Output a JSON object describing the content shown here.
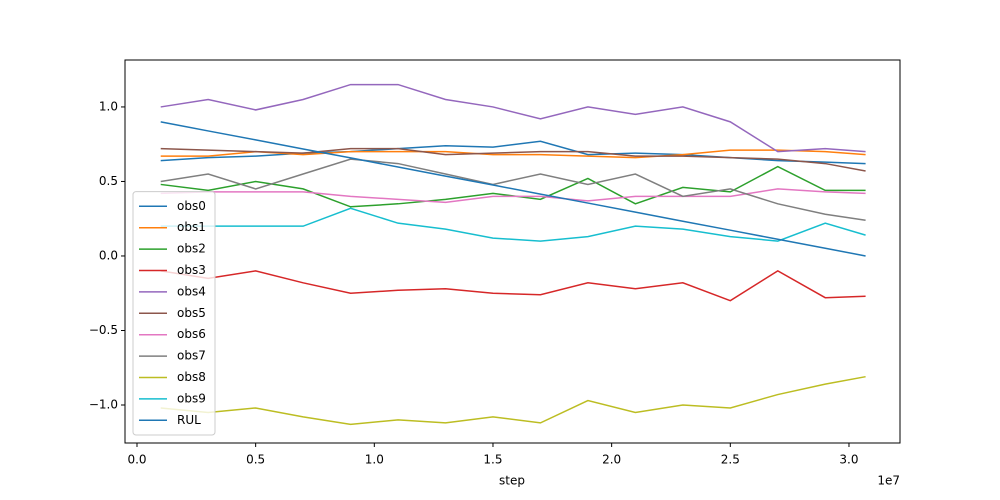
{
  "chart_data": {
    "type": "line",
    "x_label": "step",
    "x_offset_label": "1e7",
    "x": [
      1000000,
      3000000,
      5000000,
      7000000,
      9000000,
      11000000,
      13000000,
      15000000,
      17000000,
      19000000,
      21000000,
      23000000,
      25000000,
      27000000,
      29000000,
      30700000
    ],
    "series": [
      {
        "name": "obs0",
        "color": "#1f77b4",
        "values": [
          0.64,
          0.66,
          0.67,
          0.69,
          0.7,
          0.72,
          0.74,
          0.73,
          0.77,
          0.68,
          0.69,
          0.68,
          0.66,
          0.64,
          0.63,
          0.62
        ]
      },
      {
        "name": "obs1",
        "color": "#ff7f0e",
        "values": [
          0.67,
          0.67,
          0.7,
          0.68,
          0.7,
          0.7,
          0.7,
          0.68,
          0.68,
          0.67,
          0.66,
          0.68,
          0.71,
          0.71,
          0.7,
          0.68
        ]
      },
      {
        "name": "obs2",
        "color": "#2ca02c",
        "values": [
          0.48,
          0.44,
          0.5,
          0.45,
          0.33,
          0.35,
          0.38,
          0.42,
          0.38,
          0.52,
          0.35,
          0.46,
          0.43,
          0.6,
          0.44,
          0.44
        ]
      },
      {
        "name": "obs3",
        "color": "#d62728",
        "values": [
          -0.1,
          -0.15,
          -0.1,
          -0.18,
          -0.25,
          -0.23,
          -0.22,
          -0.25,
          -0.26,
          -0.18,
          -0.22,
          -0.18,
          -0.3,
          -0.1,
          -0.28,
          -0.27
        ]
      },
      {
        "name": "obs4",
        "color": "#9467bd",
        "values": [
          1.0,
          1.05,
          0.98,
          1.05,
          1.15,
          1.15,
          1.05,
          1.0,
          0.92,
          1.0,
          0.95,
          1.0,
          0.9,
          0.7,
          0.72,
          0.7
        ]
      },
      {
        "name": "obs5",
        "color": "#8c564b",
        "values": [
          0.72,
          0.71,
          0.7,
          0.69,
          0.72,
          0.72,
          0.68,
          0.69,
          0.7,
          0.7,
          0.67,
          0.67,
          0.66,
          0.65,
          0.62,
          0.57
        ]
      },
      {
        "name": "obs6",
        "color": "#e377c2",
        "values": [
          0.42,
          0.43,
          0.43,
          0.43,
          0.4,
          0.38,
          0.36,
          0.4,
          0.4,
          0.37,
          0.4,
          0.4,
          0.4,
          0.45,
          0.43,
          0.42
        ]
      },
      {
        "name": "obs7",
        "color": "#7f7f7f",
        "values": [
          0.5,
          0.55,
          0.45,
          0.55,
          0.65,
          0.62,
          0.55,
          0.48,
          0.55,
          0.48,
          0.55,
          0.4,
          0.45,
          0.35,
          0.28,
          0.24
        ]
      },
      {
        "name": "obs8",
        "color": "#bcbd22",
        "values": [
          -1.02,
          -1.05,
          -1.02,
          -1.08,
          -1.13,
          -1.1,
          -1.12,
          -1.08,
          -1.12,
          -0.97,
          -1.05,
          -1.0,
          -1.02,
          -0.93,
          -0.86,
          -0.81
        ]
      },
      {
        "name": "obs9",
        "color": "#17becf",
        "values": [
          0.2,
          0.2,
          0.2,
          0.2,
          0.32,
          0.22,
          0.18,
          0.12,
          0.1,
          0.13,
          0.2,
          0.18,
          0.13,
          0.1,
          0.22,
          0.14
        ]
      },
      {
        "name": "RUL",
        "color": "#1f77b4",
        "values": [
          0.9,
          0.839,
          0.779,
          0.718,
          0.658,
          0.597,
          0.536,
          0.476,
          0.415,
          0.355,
          0.294,
          0.233,
          0.173,
          0.112,
          0.052,
          0.0
        ]
      }
    ],
    "xlim": [
      -505000,
      32150000
    ],
    "xticks": [
      {
        "value": 0,
        "label": "0.0"
      },
      {
        "value": 5000000,
        "label": "0.5"
      },
      {
        "value": 10000000,
        "label": "1.0"
      },
      {
        "value": 15000000,
        "label": "1.5"
      },
      {
        "value": 20000000,
        "label": "2.0"
      },
      {
        "value": 25000000,
        "label": "2.5"
      },
      {
        "value": 30000000,
        "label": "3.0"
      }
    ],
    "ylim": [
      -1.255,
      1.315
    ],
    "yticks": [
      {
        "value": -1.0,
        "label": "−1.0"
      },
      {
        "value": -0.5,
        "label": "−0.5"
      },
      {
        "value": 0.0,
        "label": "0.0"
      },
      {
        "value": 0.5,
        "label": "0.5"
      },
      {
        "value": 1.0,
        "label": "1.0"
      }
    ],
    "legend": "lower left"
  }
}
